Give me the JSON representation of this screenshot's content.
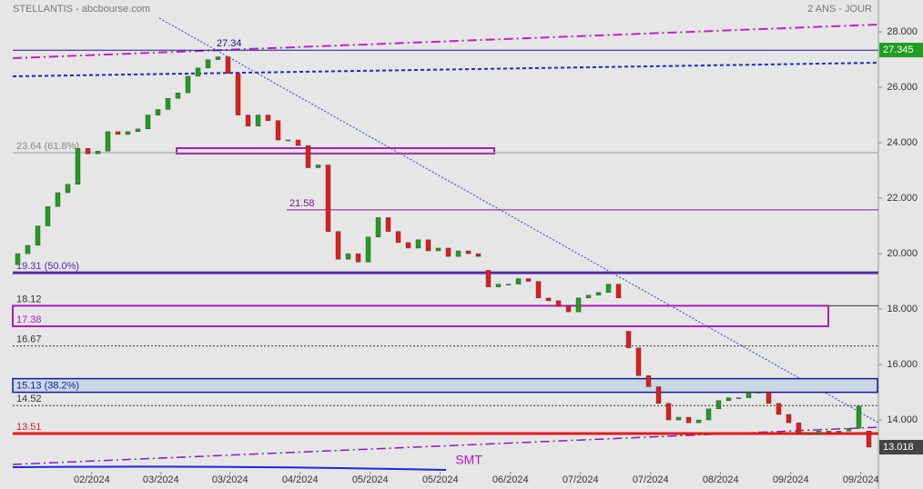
{
  "chart_data": {
    "type": "candlestick",
    "title": "STELLANTIS - abcbourse.com",
    "subtitle": "2 ANS - JOUR",
    "annotation": "SMT",
    "open": [
      19.6,
      20.0,
      20.3,
      21.0,
      21.7,
      22.2,
      22.5,
      23.8,
      23.6,
      23.7,
      24.4,
      24.3,
      24.4,
      24.5,
      25.0,
      25.2,
      25.6,
      25.8,
      26.4,
      26.7,
      27.0,
      27.1,
      26.5,
      25.0,
      24.6,
      25.0,
      24.8,
      24.1,
      24.1,
      23.9,
      23.1,
      23.2,
      20.8,
      19.8,
      20.0,
      19.7,
      20.6,
      21.3,
      20.8,
      20.4,
      20.2,
      20.5,
      20.1,
      20.2,
      19.9,
      20.1,
      20.0,
      19.4,
      18.8,
      18.9,
      18.9,
      19.1,
      19.0,
      18.4,
      18.3,
      18.1,
      17.9,
      18.4,
      18.5,
      18.6,
      18.9,
      17.2,
      16.6,
      15.6,
      15.2,
      14.6,
      14.0,
      14.1,
      13.9,
      14.0,
      14.4,
      14.7,
      14.8,
      14.8,
      15.0,
      15.0,
      14.6,
      14.2,
      13.9,
      13.5,
      13.5,
      13.6,
      13.6,
      13.6,
      13.7,
      13.6
    ],
    "close": [
      20.0,
      20.3,
      21.0,
      21.7,
      22.2,
      22.5,
      23.8,
      23.6,
      23.7,
      24.4,
      24.3,
      24.4,
      24.5,
      25.0,
      25.2,
      25.6,
      25.8,
      26.4,
      26.7,
      27.0,
      27.1,
      26.5,
      25.0,
      24.6,
      25.0,
      24.8,
      24.1,
      24.1,
      23.9,
      23.1,
      23.2,
      20.8,
      19.8,
      20.0,
      19.7,
      20.6,
      21.3,
      20.8,
      20.4,
      20.2,
      20.5,
      20.1,
      20.2,
      19.9,
      20.1,
      20.0,
      19.9,
      18.8,
      18.9,
      18.9,
      19.1,
      19.0,
      18.4,
      18.3,
      18.1,
      17.9,
      18.4,
      18.5,
      18.6,
      18.9,
      18.4,
      16.6,
      15.6,
      15.2,
      14.6,
      14.0,
      14.1,
      13.9,
      14.0,
      14.4,
      14.7,
      14.8,
      14.8,
      15.0,
      15.0,
      14.6,
      14.2,
      13.9,
      13.5,
      13.5,
      13.6,
      13.6,
      13.6,
      13.7,
      14.5,
      13.018
    ],
    "up_color": "#1f9e1f",
    "down_color": "#e21b1b",
    "xticks": [
      {
        "value": 7.4,
        "label": "02/2024"
      },
      {
        "value": 14.3,
        "label": "03/2024"
      },
      {
        "value": 21.2,
        "label": "03/2024"
      },
      {
        "value": 28.2,
        "label": "04/2024"
      },
      {
        "value": 35.2,
        "label": "05/2024"
      },
      {
        "value": 42.2,
        "label": "05/2024"
      },
      {
        "value": 49.2,
        "label": "06/2024"
      },
      {
        "value": 56.2,
        "label": "07/2024"
      },
      {
        "value": 63.2,
        "label": "07/2024"
      },
      {
        "value": 70.2,
        "label": "08/2024"
      },
      {
        "value": 77.2,
        "label": "09/2024"
      },
      {
        "value": 84.2,
        "label": "09/2024"
      }
    ],
    "ylim": [
      11.51,
      29.15
    ],
    "yticks": [
      {
        "value": 28,
        "label": "28.000"
      },
      {
        "value": 26,
        "label": "26.000"
      },
      {
        "value": 24,
        "label": "24.000"
      },
      {
        "value": 22,
        "label": "22.000"
      },
      {
        "value": 20,
        "label": "20.000"
      },
      {
        "value": 18,
        "label": "18.000"
      },
      {
        "value": 16,
        "label": "16.000"
      },
      {
        "value": 14,
        "label": "14.000"
      }
    ],
    "markers": [
      {
        "value": 27.345,
        "label": "27.345",
        "color": "#1f9e1f"
      },
      {
        "value": 13.018,
        "label": "13.018",
        "color": "#444444"
      }
    ],
    "levels": [
      {
        "value": 27.34,
        "label": "27.34",
        "color": "#1a1a8c",
        "style": "solid"
      },
      {
        "value": 23.64,
        "label": "23.64 (61.8%)",
        "color": "#999999",
        "style": "solid"
      },
      {
        "value": 21.58,
        "label": "21.58",
        "color": "#7a1a8c",
        "style": "solid"
      },
      {
        "value": 19.31,
        "label": "19.31 (50.0%)",
        "color": "#5a2aa8",
        "style": "thick"
      },
      {
        "value": 18.12,
        "label": "18.12",
        "color": "#333333",
        "style": "solid"
      },
      {
        "value": 17.38,
        "label": "17.38",
        "color": "#b01ab8",
        "style": "zone"
      },
      {
        "value": 16.67,
        "label": "16.67",
        "color": "#333333",
        "style": "dotted"
      },
      {
        "value": 15.13,
        "label": "15.13 (38.2%)",
        "color": "#1a1aa0",
        "style": "bluezone"
      },
      {
        "value": 14.52,
        "label": "14.52",
        "color": "#333333",
        "style": "dotted"
      },
      {
        "value": 13.51,
        "label": "13.51",
        "color": "#e21b1b",
        "style": "red"
      }
    ]
  }
}
